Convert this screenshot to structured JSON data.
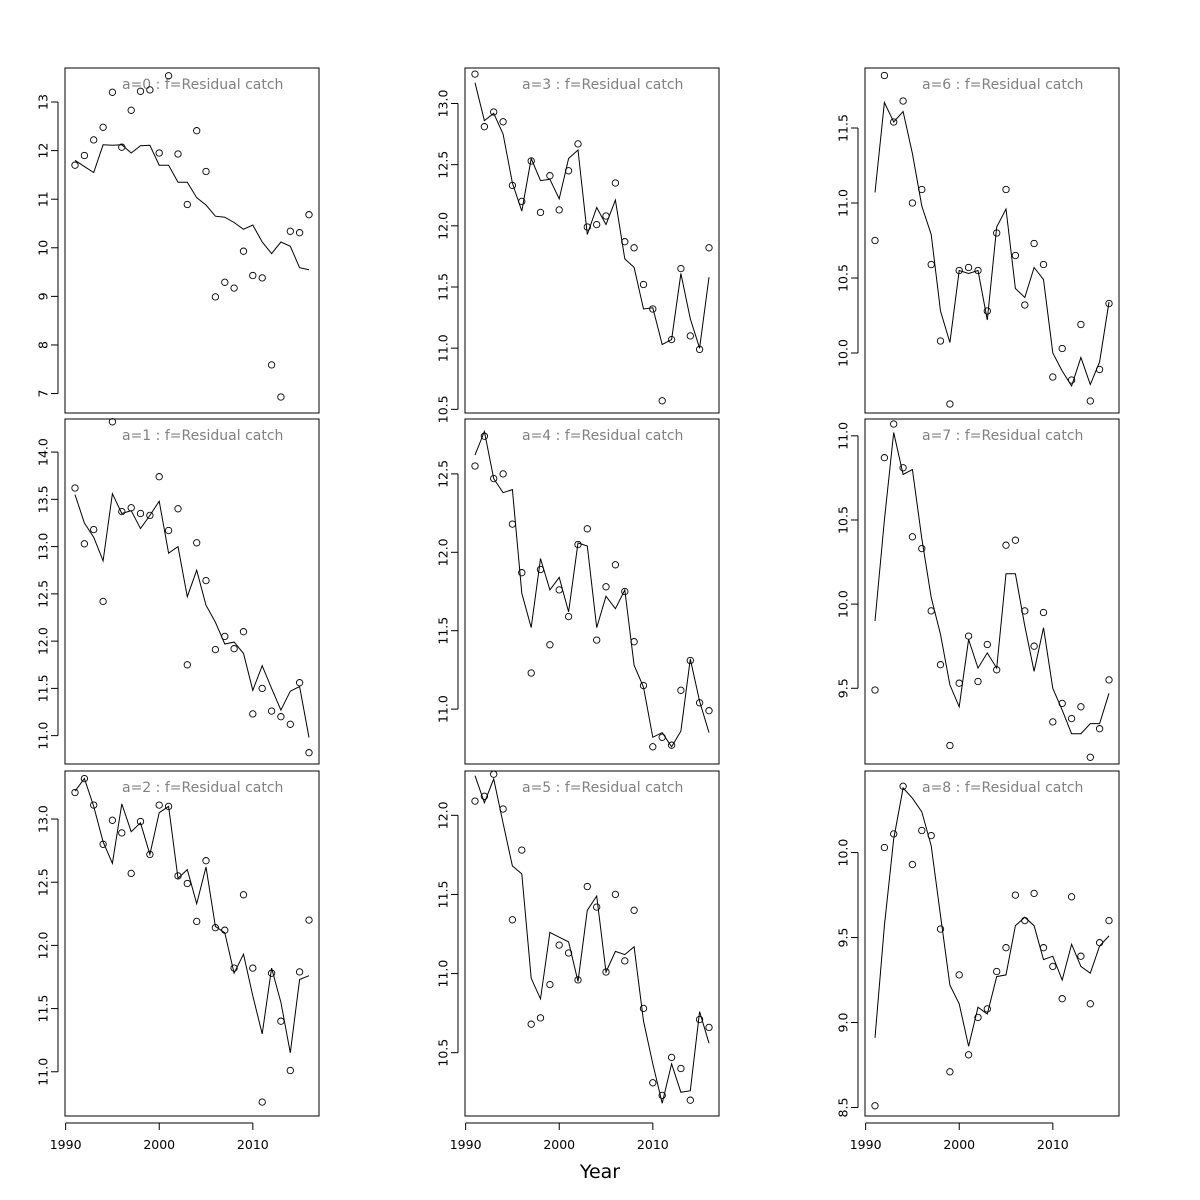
{
  "xlabel": "Year",
  "chart_data": [
    {
      "type": "line",
      "title": "a=0  :  f=Residual catch",
      "x": [
        1991,
        1992,
        1993,
        1994,
        1995,
        1996,
        1997,
        1998,
        1999,
        2000,
        2001,
        2002,
        2003,
        2004,
        2005,
        2006,
        2007,
        2008,
        2009,
        2010,
        2011,
        2012,
        2013,
        2014,
        2015,
        2016
      ],
      "xlim": [
        1991,
        2016
      ],
      "ylim": [
        6.6,
        13.7
      ],
      "yticks": [
        7,
        8,
        9,
        10,
        11,
        12,
        13
      ],
      "xticks": [],
      "series": [
        {
          "style": "line",
          "values": [
            11.8,
            11.67,
            11.55,
            12.12,
            12.11,
            12.12,
            11.95,
            12.1,
            12.11,
            11.7,
            11.7,
            11.35,
            11.35,
            11.03,
            10.88,
            10.65,
            10.63,
            10.52,
            10.38,
            10.47,
            10.12,
            9.88,
            10.12,
            10.03,
            9.59,
            9.55
          ]
        },
        {
          "style": "points",
          "values": [
            11.7,
            11.9,
            12.22,
            12.48,
            13.2,
            12.07,
            12.83,
            13.22,
            13.25,
            11.95,
            13.54,
            11.93,
            10.89,
            12.41,
            11.57,
            8.99,
            9.29,
            9.17,
            9.93,
            9.43,
            9.38,
            7.59,
            6.93,
            10.34,
            10.31,
            10.68
          ]
        }
      ]
    },
    {
      "type": "line",
      "title": "a=1  :  f=Residual catch",
      "x": [
        1991,
        1992,
        1993,
        1994,
        1995,
        1996,
        1997,
        1998,
        1999,
        2000,
        2001,
        2002,
        2003,
        2004,
        2005,
        2006,
        2007,
        2008,
        2009,
        2010,
        2011,
        2012,
        2013,
        2014,
        2015,
        2016
      ],
      "xlim": [
        1991,
        2016
      ],
      "ylim": [
        10.7,
        14.35
      ],
      "yticks": [
        11.0,
        11.5,
        12.0,
        12.5,
        13.0,
        13.5,
        14.0
      ],
      "xticks": [],
      "series": [
        {
          "style": "line",
          "values": [
            13.55,
            13.25,
            13.1,
            12.85,
            13.56,
            13.35,
            13.38,
            13.19,
            13.33,
            13.48,
            12.93,
            13.0,
            12.47,
            12.75,
            12.38,
            12.2,
            11.97,
            11.99,
            11.87,
            11.48,
            11.74,
            11.5,
            11.27,
            11.47,
            11.52,
            10.98
          ]
        },
        {
          "style": "points",
          "values": [
            13.62,
            13.03,
            13.18,
            12.42,
            14.32,
            13.37,
            13.41,
            13.35,
            13.33,
            13.74,
            13.17,
            13.4,
            11.75,
            13.04,
            12.64,
            11.91,
            12.05,
            11.92,
            12.1,
            11.23,
            11.5,
            11.26,
            11.2,
            11.12,
            11.56,
            10.82
          ]
        }
      ]
    },
    {
      "type": "line",
      "title": "a=2  :  f=Residual catch",
      "x": [
        1991,
        1992,
        1993,
        1994,
        1995,
        1996,
        1997,
        1998,
        1999,
        2000,
        2001,
        2002,
        2003,
        2004,
        2005,
        2006,
        2007,
        2008,
        2009,
        2010,
        2011,
        2012,
        2013,
        2014,
        2015,
        2016
      ],
      "xlim": [
        1991,
        2016
      ],
      "ylim": [
        10.65,
        13.38
      ],
      "yticks": [
        11.0,
        11.5,
        12.0,
        12.5,
        13.0
      ],
      "xticks": [
        1990,
        2000,
        2010
      ],
      "series": [
        {
          "style": "line",
          "values": [
            13.22,
            13.32,
            13.1,
            12.82,
            12.65,
            13.12,
            12.9,
            12.97,
            12.72,
            13.05,
            13.1,
            12.53,
            12.6,
            12.33,
            12.62,
            12.15,
            12.1,
            11.78,
            11.93,
            11.6,
            11.3,
            11.82,
            11.55,
            11.15,
            11.73,
            11.76
          ]
        },
        {
          "style": "points",
          "values": [
            13.21,
            13.32,
            13.11,
            12.8,
            12.99,
            12.89,
            12.57,
            12.98,
            12.72,
            13.11,
            13.1,
            12.55,
            12.49,
            12.19,
            12.67,
            12.14,
            12.12,
            11.82,
            12.4,
            11.82,
            10.76,
            11.78,
            11.4,
            11.01,
            11.79,
            12.2
          ]
        }
      ]
    },
    {
      "type": "line",
      "title": "a=3  :  f=Residual catch",
      "x": [
        1991,
        1992,
        1993,
        1994,
        1995,
        1996,
        1997,
        1998,
        1999,
        2000,
        2001,
        2002,
        2003,
        2004,
        2005,
        2006,
        2007,
        2008,
        2009,
        2010,
        2011,
        2012,
        2013,
        2014,
        2015,
        2016
      ],
      "xlim": [
        1991,
        2016
      ],
      "ylim": [
        10.47,
        13.29
      ],
      "yticks": [
        10.5,
        11.0,
        11.5,
        12.0,
        12.5,
        13.0
      ],
      "xticks": [],
      "series": [
        {
          "style": "line",
          "values": [
            13.17,
            12.86,
            12.92,
            12.75,
            12.35,
            12.12,
            12.55,
            12.37,
            12.38,
            12.22,
            12.55,
            12.62,
            11.93,
            12.15,
            12.01,
            12.21,
            11.73,
            11.66,
            11.32,
            11.33,
            11.03,
            11.07,
            11.61,
            11.24,
            11.0,
            11.58
          ]
        },
        {
          "style": "points",
          "values": [
            13.24,
            12.81,
            12.93,
            12.85,
            12.33,
            12.2,
            12.53,
            12.11,
            12.41,
            12.13,
            12.45,
            12.67,
            11.99,
            12.01,
            12.08,
            12.35,
            11.87,
            11.82,
            11.52,
            11.32,
            10.57,
            11.07,
            11.65,
            11.1,
            10.99,
            11.82
          ]
        }
      ]
    },
    {
      "type": "line",
      "title": "a=4  :  f=Residual catch",
      "x": [
        1991,
        1992,
        1993,
        1994,
        1995,
        1996,
        1997,
        1998,
        1999,
        2000,
        2001,
        2002,
        2003,
        2004,
        2005,
        2006,
        2007,
        2008,
        2009,
        2010,
        2011,
        2012,
        2013,
        2014,
        2015,
        2016
      ],
      "xlim": [
        1991,
        2016
      ],
      "ylim": [
        10.65,
        12.85
      ],
      "yticks": [
        11.0,
        11.5,
        12.0,
        12.5
      ],
      "xticks": [],
      "series": [
        {
          "style": "line",
          "values": [
            12.62,
            12.77,
            12.47,
            12.38,
            12.4,
            11.74,
            11.52,
            11.96,
            11.76,
            11.84,
            11.62,
            12.06,
            12.04,
            11.52,
            11.72,
            11.64,
            11.76,
            11.28,
            11.14,
            10.82,
            10.85,
            10.76,
            10.86,
            11.32,
            11.05,
            10.85
          ]
        },
        {
          "style": "points",
          "values": [
            12.55,
            12.74,
            12.47,
            12.5,
            12.18,
            11.87,
            11.23,
            11.89,
            11.41,
            11.76,
            11.59,
            12.05,
            12.15,
            11.44,
            11.78,
            11.92,
            11.75,
            11.43,
            11.15,
            10.76,
            10.82,
            10.77,
            11.12,
            11.31,
            11.04,
            10.99
          ]
        }
      ]
    },
    {
      "type": "line",
      "title": "a=5  :  f=Residual catch",
      "x": [
        1991,
        1992,
        1993,
        1994,
        1995,
        1996,
        1997,
        1998,
        1999,
        2000,
        2001,
        2002,
        2003,
        2004,
        2005,
        2006,
        2007,
        2008,
        2009,
        2010,
        2011,
        2012,
        2013,
        2014,
        2015,
        2016
      ],
      "xlim": [
        1991,
        2016
      ],
      "ylim": [
        10.1,
        12.28
      ],
      "yticks": [
        10.5,
        11.0,
        11.5,
        12.0
      ],
      "xticks": [
        1990,
        2000,
        2010
      ],
      "series": [
        {
          "style": "line",
          "values": [
            12.25,
            12.08,
            12.23,
            11.95,
            11.68,
            11.63,
            10.97,
            10.84,
            11.26,
            11.23,
            11.2,
            10.95,
            11.4,
            11.49,
            11.01,
            11.14,
            11.12,
            11.17,
            10.7,
            10.43,
            10.18,
            10.43,
            10.25,
            10.26,
            10.76,
            10.56
          ]
        },
        {
          "style": "points",
          "values": [
            12.09,
            12.12,
            12.26,
            12.04,
            11.34,
            11.78,
            10.68,
            10.72,
            10.93,
            11.18,
            11.13,
            10.96,
            11.55,
            11.42,
            11.01,
            11.5,
            11.08,
            11.4,
            10.78,
            10.31,
            10.23,
            10.47,
            10.4,
            10.2,
            10.71,
            10.66
          ]
        }
      ]
    },
    {
      "type": "line",
      "title": "a=6  :  f=Residual catch",
      "x": [
        1991,
        1992,
        1993,
        1994,
        1995,
        1996,
        1997,
        1998,
        1999,
        2000,
        2001,
        2002,
        2003,
        2004,
        2005,
        2006,
        2007,
        2008,
        2009,
        2010,
        2011,
        2012,
        2013,
        2014,
        2015,
        2016
      ],
      "xlim": [
        1991,
        2016
      ],
      "ylim": [
        9.6,
        11.9
      ],
      "yticks": [
        10.0,
        10.5,
        11.0,
        11.5
      ],
      "xticks": [],
      "series": [
        {
          "style": "line",
          "values": [
            11.07,
            11.67,
            11.54,
            11.61,
            11.33,
            10.98,
            10.79,
            10.28,
            10.07,
            10.55,
            10.53,
            10.55,
            10.22,
            10.84,
            10.96,
            10.43,
            10.37,
            10.57,
            10.49,
            10.0,
            9.88,
            9.78,
            9.97,
            9.79,
            9.94,
            10.34
          ]
        },
        {
          "style": "points",
          "values": [
            10.75,
            11.85,
            11.54,
            11.68,
            11.0,
            11.09,
            10.59,
            10.08,
            9.66,
            10.55,
            10.57,
            10.55,
            10.28,
            10.8,
            11.09,
            10.65,
            10.32,
            10.73,
            10.59,
            9.84,
            10.03,
            9.82,
            10.19,
            9.68,
            9.89,
            10.33
          ]
        }
      ]
    },
    {
      "type": "line",
      "title": "a=7  :  f=Residual catch",
      "x": [
        1991,
        1992,
        1993,
        1994,
        1995,
        1996,
        1997,
        1998,
        1999,
        2000,
        2001,
        2002,
        2003,
        2004,
        2005,
        2006,
        2007,
        2008,
        2009,
        2010,
        2011,
        2012,
        2013,
        2014,
        2015,
        2016
      ],
      "xlim": [
        1991,
        2016
      ],
      "ylim": [
        9.05,
        11.1
      ],
      "yticks": [
        9.5,
        10.0,
        10.5,
        11.0
      ],
      "xticks": [],
      "series": [
        {
          "style": "line",
          "values": [
            9.9,
            10.5,
            11.02,
            10.77,
            10.8,
            10.39,
            10.04,
            9.82,
            9.52,
            9.39,
            9.79,
            9.62,
            9.71,
            9.62,
            10.18,
            10.18,
            9.87,
            9.6,
            9.86,
            9.5,
            9.37,
            9.23,
            9.23,
            9.29,
            9.29,
            9.47
          ]
        },
        {
          "style": "points",
          "values": [
            9.49,
            10.87,
            11.07,
            10.81,
            10.4,
            10.33,
            9.96,
            9.64,
            9.16,
            9.53,
            9.81,
            9.54,
            9.76,
            9.61,
            10.35,
            10.38,
            9.96,
            9.75,
            9.95,
            9.3,
            9.41,
            9.32,
            9.39,
            9.09,
            9.26,
            9.55
          ]
        }
      ]
    },
    {
      "type": "line",
      "title": "a=8  :  f=Residual catch",
      "x": [
        1991,
        1992,
        1993,
        1994,
        1995,
        1996,
        1997,
        1998,
        1999,
        2000,
        2001,
        2002,
        2003,
        2004,
        2005,
        2006,
        2007,
        2008,
        2009,
        2010,
        2011,
        2012,
        2013,
        2014,
        2015,
        2016
      ],
      "xlim": [
        1991,
        2016
      ],
      "ylim": [
        8.45,
        10.48
      ],
      "yticks": [
        8.5,
        9.0,
        9.5,
        10.0
      ],
      "xticks": [
        1990,
        2000,
        2010
      ],
      "series": [
        {
          "style": "line",
          "values": [
            8.91,
            9.57,
            10.08,
            10.38,
            10.32,
            10.24,
            10.04,
            9.63,
            9.22,
            9.11,
            8.86,
            9.09,
            9.05,
            9.27,
            9.28,
            9.57,
            9.62,
            9.57,
            9.37,
            9.39,
            9.25,
            9.46,
            9.33,
            9.29,
            9.45,
            9.51
          ]
        },
        {
          "style": "points",
          "values": [
            8.51,
            10.03,
            10.11,
            10.39,
            9.93,
            10.13,
            10.1,
            9.55,
            8.71,
            9.28,
            8.81,
            9.03,
            9.08,
            9.3,
            9.44,
            9.75,
            9.6,
            9.76,
            9.44,
            9.33,
            9.14,
            9.74,
            9.39,
            9.11,
            9.47,
            9.6
          ]
        }
      ]
    }
  ]
}
